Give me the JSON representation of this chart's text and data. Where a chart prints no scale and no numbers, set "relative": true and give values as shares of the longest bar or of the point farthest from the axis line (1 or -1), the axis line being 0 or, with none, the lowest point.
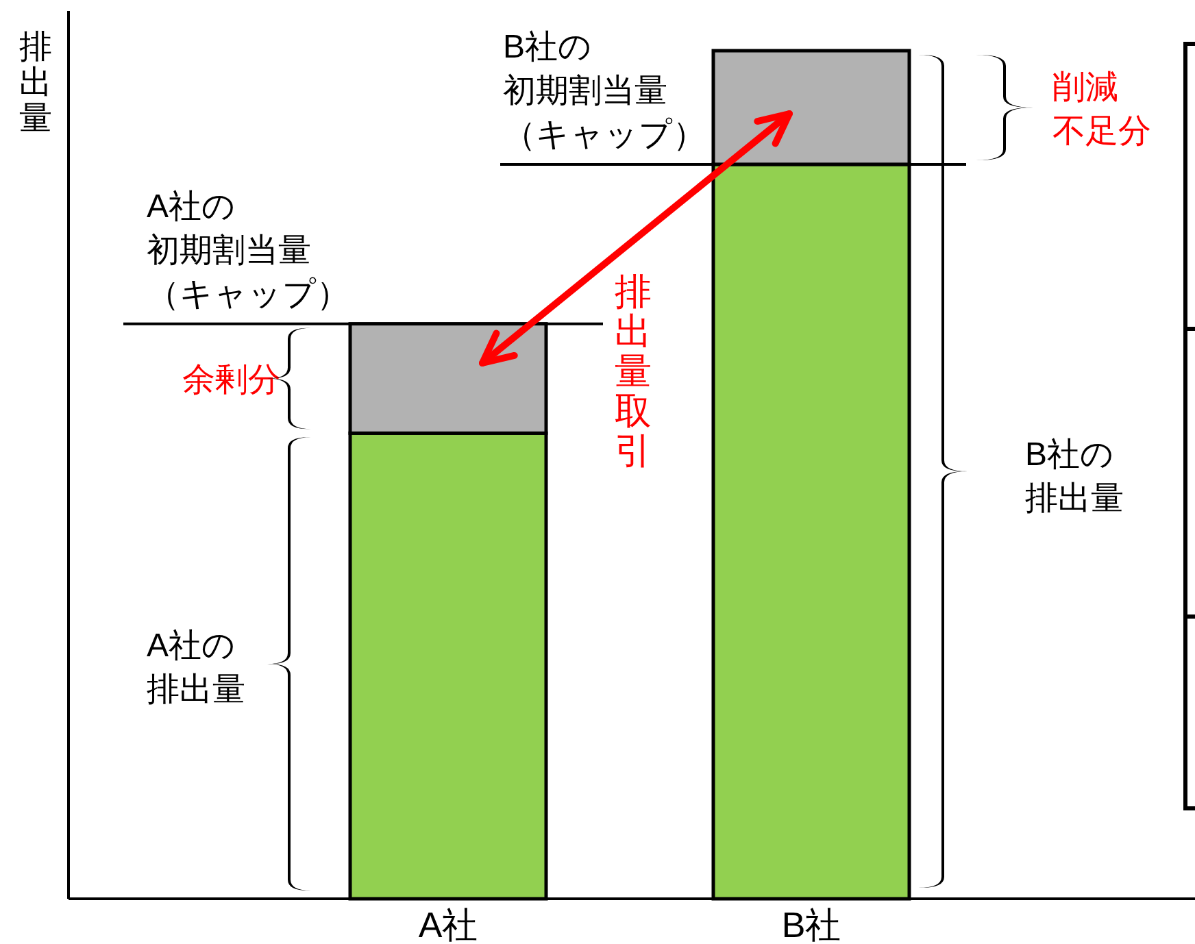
{
  "chart_data": {
    "type": "bar",
    "stacked": true,
    "relative": true,
    "ylabel": "排出量",
    "categories": [
      "A社",
      "B社"
    ],
    "series": [
      {
        "color": "#92d050",
        "values": [
          0.549,
          0.866
        ]
      },
      {
        "color": "#b2b2b2",
        "values": [
          0.129,
          0.134
        ]
      }
    ],
    "annotations": [
      "A社の初期割当量（キャップ）",
      "余剰分",
      "A社の排出量",
      "B社の初期割当量（キャップ）",
      "削減不足分",
      "B社の排出量",
      "排出量取引"
    ]
  }
}
